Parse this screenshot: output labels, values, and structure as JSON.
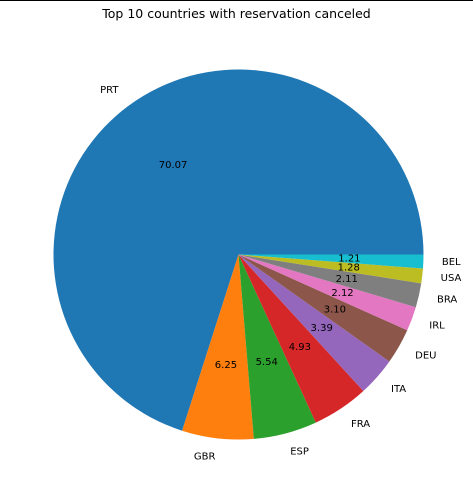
{
  "chart_data": {
    "type": "pie",
    "title": "Top 10 countries with reservation canceled",
    "categories": [
      "PRT",
      "GBR",
      "ESP",
      "FRA",
      "ITA",
      "DEU",
      "IRL",
      "BRA",
      "USA",
      "BEL"
    ],
    "values": [
      70.07,
      6.25,
      5.54,
      4.93,
      3.39,
      3.1,
      2.12,
      2.11,
      1.28,
      1.21
    ],
    "value_labels": [
      "70.07",
      "6.25",
      "5.54",
      "4.93",
      "3.39",
      "3.10",
      "2.12",
      "2.11",
      "1.28",
      "1.21"
    ],
    "colors": [
      "#1f77b4",
      "#ff7f0e",
      "#2ca02c",
      "#d62728",
      "#9467bd",
      "#8c564b",
      "#e377c2",
      "#7f7f7f",
      "#bcbd22",
      "#17becf"
    ],
    "start_angle_deg": 0,
    "direction": "counterclockwise"
  }
}
